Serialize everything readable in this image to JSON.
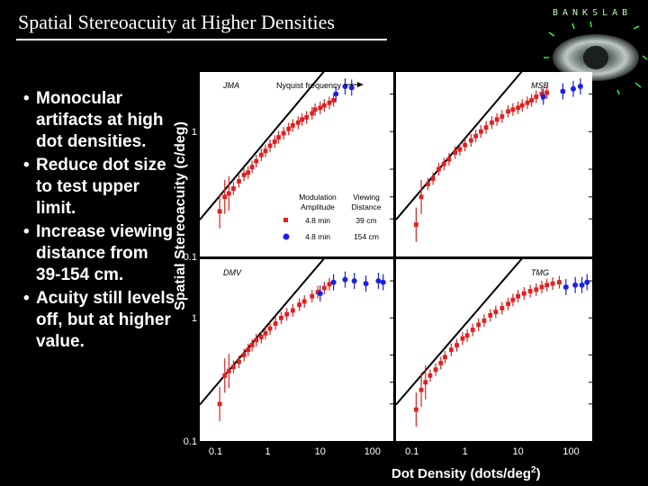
{
  "slide": {
    "title": "Spatial Stereoacuity at Higher Densities",
    "logo_text": "BANKSLAB",
    "bullets": [
      "Monocular artifacts at high dot densities.",
      "Reduce dot size to test upper limit.",
      "Increase viewing distance from 39-154 cm.",
      "Acuity still levels off, but at higher value."
    ]
  },
  "chart_data": {
    "type": "scatter",
    "ylabel": "Spatial Stereoacuity (c/deg)",
    "xlabel": "Dot Density (dots/deg",
    "xlabel_sup": "2",
    "xlabel_tail": ")",
    "xscale": "log",
    "yscale": "log",
    "xlim": [
      0.05,
      250
    ],
    "ylim": [
      0.1,
      3
    ],
    "x_ticks": [
      "0.1",
      "1",
      "10",
      "100"
    ],
    "y_ticks": [
      "0.1",
      "1"
    ],
    "colors": {
      "red_series": "#e02020",
      "blue_series": "#1a22e0",
      "line": "#000000",
      "panel": "#ffffff"
    },
    "nyquist_label": "Nyquist frequency",
    "legend": {
      "headers": [
        "Modulation Amplitude",
        "Viewing Distance"
      ],
      "header_lines": [
        [
          "Modulation",
          "Amplitude"
        ],
        [
          "Viewing",
          "Distance"
        ]
      ],
      "rows": [
        {
          "marker": "square",
          "color": "#e02020",
          "amplitude": "4.8 min",
          "distance": "39 cm"
        },
        {
          "marker": "circle",
          "color": "#1a22e0",
          "amplitude": "4.8 min",
          "distance": "154 cm"
        }
      ]
    },
    "panels": [
      {
        "name": "JMA",
        "red": [
          [
            0.12,
            0.23
          ],
          [
            0.15,
            0.3
          ],
          [
            0.18,
            0.32
          ],
          [
            0.22,
            0.35
          ],
          [
            0.28,
            0.4
          ],
          [
            0.35,
            0.45
          ],
          [
            0.42,
            0.47
          ],
          [
            0.5,
            0.52
          ],
          [
            0.6,
            0.58
          ],
          [
            0.75,
            0.65
          ],
          [
            0.9,
            0.7
          ],
          [
            1.1,
            0.77
          ],
          [
            1.35,
            0.83
          ],
          [
            1.6,
            0.9
          ],
          [
            2.0,
            0.97
          ],
          [
            2.5,
            1.05
          ],
          [
            3.0,
            1.12
          ],
          [
            3.8,
            1.18
          ],
          [
            4.5,
            1.25
          ],
          [
            5.5,
            1.3
          ],
          [
            7,
            1.4
          ],
          [
            8,
            1.5
          ],
          [
            10,
            1.55
          ],
          [
            12,
            1.62
          ],
          [
            15,
            1.7
          ],
          [
            18,
            1.78
          ]
        ],
        "blue": [
          [
            20,
            2.0
          ],
          [
            30,
            2.3
          ],
          [
            40,
            2.25
          ]
        ]
      },
      {
        "name": "MSB",
        "red": [
          [
            0.12,
            0.18
          ],
          [
            0.15,
            0.3
          ],
          [
            0.2,
            0.38
          ],
          [
            0.25,
            0.42
          ],
          [
            0.32,
            0.5
          ],
          [
            0.4,
            0.55
          ],
          [
            0.5,
            0.6
          ],
          [
            0.65,
            0.68
          ],
          [
            0.8,
            0.72
          ],
          [
            1.0,
            0.78
          ],
          [
            1.3,
            0.85
          ],
          [
            1.6,
            0.92
          ],
          [
            2.0,
            1.0
          ],
          [
            2.5,
            1.08
          ],
          [
            3.2,
            1.18
          ],
          [
            4.0,
            1.25
          ],
          [
            5.0,
            1.32
          ],
          [
            6.5,
            1.45
          ],
          [
            8,
            1.5
          ],
          [
            10,
            1.55
          ],
          [
            12,
            1.62
          ],
          [
            15,
            1.7
          ],
          [
            18,
            1.78
          ],
          [
            22,
            1.9
          ],
          [
            28,
            2.0
          ],
          [
            35,
            2.05
          ]
        ],
        "blue": [
          [
            30,
            1.9
          ],
          [
            70,
            2.1
          ],
          [
            110,
            2.2
          ],
          [
            150,
            2.3
          ]
        ]
      },
      {
        "name": "DMV",
        "red": [
          [
            0.12,
            0.2
          ],
          [
            0.15,
            0.34
          ],
          [
            0.18,
            0.37
          ],
          [
            0.22,
            0.4
          ],
          [
            0.28,
            0.44
          ],
          [
            0.35,
            0.5
          ],
          [
            0.42,
            0.55
          ],
          [
            0.5,
            0.6
          ],
          [
            0.6,
            0.66
          ],
          [
            0.75,
            0.7
          ],
          [
            0.9,
            0.75
          ],
          [
            1.1,
            0.82
          ],
          [
            1.4,
            0.9
          ],
          [
            1.8,
            1.0
          ],
          [
            2.3,
            1.07
          ],
          [
            3.0,
            1.15
          ],
          [
            4.0,
            1.28
          ],
          [
            5,
            1.36
          ],
          [
            7,
            1.5
          ],
          [
            9,
            1.62
          ],
          [
            12,
            1.75
          ],
          [
            15,
            1.88
          ]
        ],
        "blue": [
          [
            10,
            1.58
          ],
          [
            18,
            1.95
          ],
          [
            30,
            2.05
          ],
          [
            45,
            2.0
          ],
          [
            75,
            1.9
          ],
          [
            130,
            2.0
          ],
          [
            160,
            1.95
          ]
        ]
      },
      {
        "name": "TMG",
        "red": [
          [
            0.12,
            0.18
          ],
          [
            0.15,
            0.26
          ],
          [
            0.18,
            0.3
          ],
          [
            0.22,
            0.34
          ],
          [
            0.28,
            0.38
          ],
          [
            0.35,
            0.43
          ],
          [
            0.42,
            0.48
          ],
          [
            0.55,
            0.55
          ],
          [
            0.7,
            0.6
          ],
          [
            0.9,
            0.68
          ],
          [
            1.1,
            0.72
          ],
          [
            1.4,
            0.8
          ],
          [
            1.8,
            0.88
          ],
          [
            2.3,
            0.95
          ],
          [
            3.0,
            1.05
          ],
          [
            3.8,
            1.12
          ],
          [
            5,
            1.2
          ],
          [
            6.5,
            1.3
          ],
          [
            8,
            1.4
          ],
          [
            10,
            1.5
          ],
          [
            13,
            1.58
          ],
          [
            17,
            1.65
          ],
          [
            22,
            1.7
          ],
          [
            28,
            1.78
          ],
          [
            35,
            1.85
          ],
          [
            45,
            1.9
          ],
          [
            60,
            1.95
          ]
        ],
        "blue": [
          [
            80,
            1.78
          ],
          [
            120,
            1.85
          ],
          [
            160,
            1.85
          ],
          [
            200,
            1.95
          ]
        ]
      }
    ]
  }
}
